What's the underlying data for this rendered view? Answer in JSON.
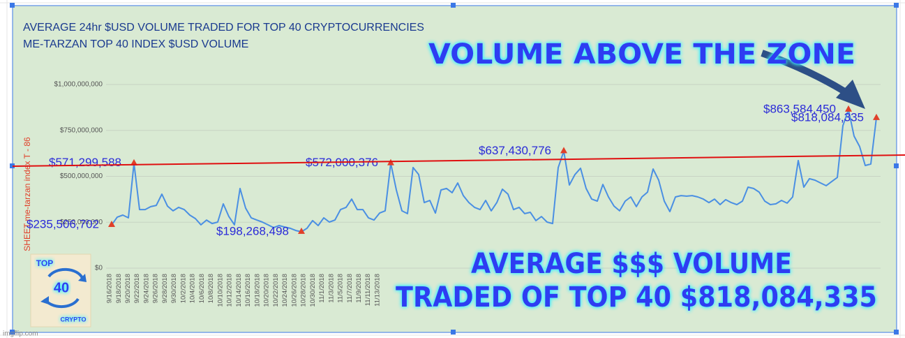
{
  "chart_data": {
    "type": "line",
    "title": "AVERAGE 24hr $USD VOLUME TRADED FOR TOP 40 CRYPTOCURRENCIES",
    "subtitle": "ME-TARZAN TOP 40 INDEX $USD VOLUME",
    "y_label": "SHEET me-tarzan index   T - 86",
    "color": "#4a8fe3",
    "marker_color": "#e0402a",
    "ylim": [
      0,
      1000000000
    ],
    "yticks": [
      {
        "value": 0,
        "label": "$0"
      },
      {
        "value": 250000000,
        "label": "$250,000,000"
      },
      {
        "value": 500000000,
        "label": "$500,000,000"
      },
      {
        "value": 750000000,
        "label": "$750,000,000"
      },
      {
        "value": 1000000000,
        "label": "$1,000,000,000"
      }
    ],
    "grid": true,
    "x_labels": [
      "9/16/2018",
      "9/18/2018",
      "9/20/2018",
      "9/22/2018",
      "9/24/2018",
      "9/26/2018",
      "9/28/2018",
      "9/30/2018",
      "10/2/2018",
      "10/4/2018",
      "10/6/2018",
      "10/8/2018",
      "10/10/2018",
      "10/12/2018",
      "10/14/2018",
      "10/16/2018",
      "10/18/2018",
      "10/20/2018",
      "10/22/2018",
      "10/24/2018",
      "10/26/2018",
      "10/28/2018",
      "10/30/2018",
      "11/1/2018",
      "11/3/2018",
      "11/5/2018",
      "11/7/2018",
      "11/9/2018",
      "11/11/2018",
      "11/13/2018"
    ],
    "values": [
      235506702,
      278000000,
      289000000,
      274000000,
      571299588,
      319000000,
      319000000,
      335000000,
      342000000,
      403000000,
      338000000,
      312000000,
      331000000,
      319000000,
      289000000,
      270000000,
      236000000,
      262000000,
      243000000,
      251000000,
      350000000,
      281000000,
      236000000,
      434000000,
      327000000,
      274000000,
      262000000,
      251000000,
      236000000,
      221000000,
      232000000,
      224000000,
      217000000,
      205000000,
      198268498,
      217000000,
      259000000,
      232000000,
      274000000,
      251000000,
      262000000,
      319000000,
      331000000,
      376000000,
      319000000,
      319000000,
      274000000,
      262000000,
      300000000,
      312000000,
      572000376,
      426000000,
      312000000,
      297000000,
      548000000,
      510000000,
      357000000,
      369000000,
      300000000,
      426000000,
      434000000,
      411000000,
      464000000,
      395000000,
      357000000,
      331000000,
      319000000,
      369000000,
      312000000,
      357000000,
      430000000,
      403000000,
      319000000,
      331000000,
      297000000,
      304000000,
      259000000,
      281000000,
      251000000,
      243000000,
      548000000,
      637430776,
      453000000,
      510000000,
      544000000,
      434000000,
      376000000,
      365000000,
      456000000,
      388000000,
      338000000,
      312000000,
      365000000,
      388000000,
      335000000,
      388000000,
      414000000,
      540000000,
      479000000,
      365000000,
      308000000,
      388000000,
      395000000,
      392000000,
      395000000,
      388000000,
      376000000,
      357000000,
      376000000,
      346000000,
      373000000,
      357000000,
      346000000,
      365000000,
      441000000,
      434000000,
      414000000,
      365000000,
      346000000,
      350000000,
      369000000,
      354000000,
      388000000,
      586000000,
      441000000,
      487000000,
      479000000,
      464000000,
      449000000,
      472000000,
      494000000,
      776000000,
      863584450,
      719000000,
      662000000,
      559000000,
      567000000,
      818084335
    ],
    "value_labels": [
      "$235,506,702",
      null,
      null,
      null,
      "$571,299,588",
      null,
      null,
      null,
      null,
      null,
      null,
      null,
      null,
      null,
      null,
      null,
      null,
      null,
      null,
      null,
      null,
      null,
      null,
      null,
      null,
      null,
      null,
      null,
      null,
      null,
      null,
      null,
      null,
      null,
      "$198,268,498",
      null,
      null,
      null,
      null,
      null,
      null,
      null,
      null,
      null,
      null,
      null,
      null,
      null,
      null,
      null,
      "$572,000,376",
      null,
      null,
      null,
      null,
      null,
      null,
      null,
      null,
      null,
      null,
      null,
      null,
      null,
      null,
      null,
      null,
      null,
      null,
      null,
      null,
      null,
      null,
      null,
      null,
      null,
      null,
      null,
      null,
      null,
      null,
      "$637,430,776",
      null,
      null,
      null,
      null,
      null,
      null,
      null,
      null,
      null,
      null,
      null,
      null,
      null,
      null,
      null,
      null,
      null,
      null,
      null,
      null,
      null,
      null,
      null,
      null,
      null,
      null,
      null,
      null,
      null,
      null,
      null,
      null,
      null,
      null,
      null,
      null,
      null,
      null,
      null,
      null,
      null,
      null,
      null,
      null,
      null,
      null,
      null,
      null,
      null,
      null,
      "$863,584,450",
      null,
      null,
      null,
      null,
      "$818,084,335"
    ],
    "annotations": [
      "VOLUME ABOVE THE ZONE",
      "AVERAGE $$$ VOLUME",
      "TRADED OF TOP 40  $818,084,335"
    ]
  },
  "logo": {
    "top": "TOP",
    "number": "40",
    "bottom": "CRYPTO"
  },
  "watermark": "imgflip.com"
}
